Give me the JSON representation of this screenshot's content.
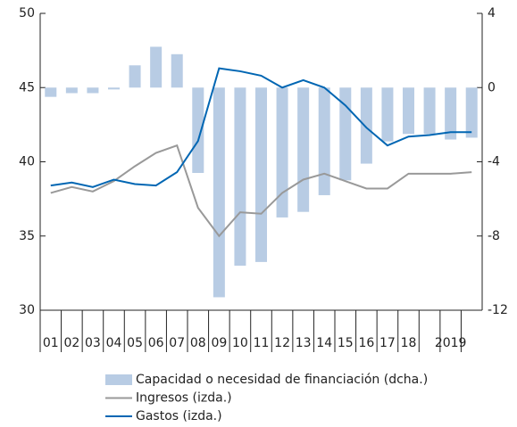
{
  "chart_data": {
    "type": "combo",
    "categories": [
      "01",
      "02",
      "03",
      "04",
      "05",
      "06",
      "07",
      "08",
      "09",
      "10",
      "11",
      "12",
      "13",
      "14",
      "15",
      "16",
      "17",
      "18",
      null,
      "2019",
      null
    ],
    "series": [
      {
        "name": "Capacidad o necesidad de financiación (dcha.)",
        "type": "bar",
        "axis": "y2",
        "color": "#b8cce4",
        "values": [
          -0.5,
          -0.3,
          -0.3,
          -0.1,
          1.2,
          2.2,
          1.8,
          -4.6,
          -11.3,
          -9.6,
          -9.4,
          -7.0,
          -6.7,
          -5.8,
          -5.0,
          -4.1,
          -2.9,
          -2.5,
          -2.5,
          -2.8,
          -2.7
        ]
      },
      {
        "name": "Ingresos (izda.)",
        "type": "line",
        "color": "#999999",
        "values": [
          37.9,
          38.3,
          38.0,
          38.7,
          39.7,
          40.6,
          41.1,
          36.9,
          35.0,
          36.6,
          36.5,
          37.9,
          38.8,
          39.2,
          38.7,
          38.2,
          38.2,
          39.2,
          39.2,
          39.2,
          39.3
        ]
      },
      {
        "name": "Gastos (izda.)",
        "type": "line",
        "color": "#0066b3",
        "values": [
          38.4,
          38.6,
          38.3,
          38.8,
          38.5,
          38.4,
          39.3,
          41.4,
          46.3,
          46.1,
          45.8,
          45.0,
          45.5,
          45.0,
          43.8,
          42.3,
          41.1,
          41.7,
          41.8,
          42.0,
          42.0
        ]
      }
    ],
    "ylim": [
      30,
      50
    ],
    "yticks": [
      30,
      35,
      40,
      45,
      50
    ],
    "y2lim": [
      -12,
      4
    ],
    "y2ticks": [
      -12,
      -8,
      -4,
      0,
      4
    ]
  }
}
